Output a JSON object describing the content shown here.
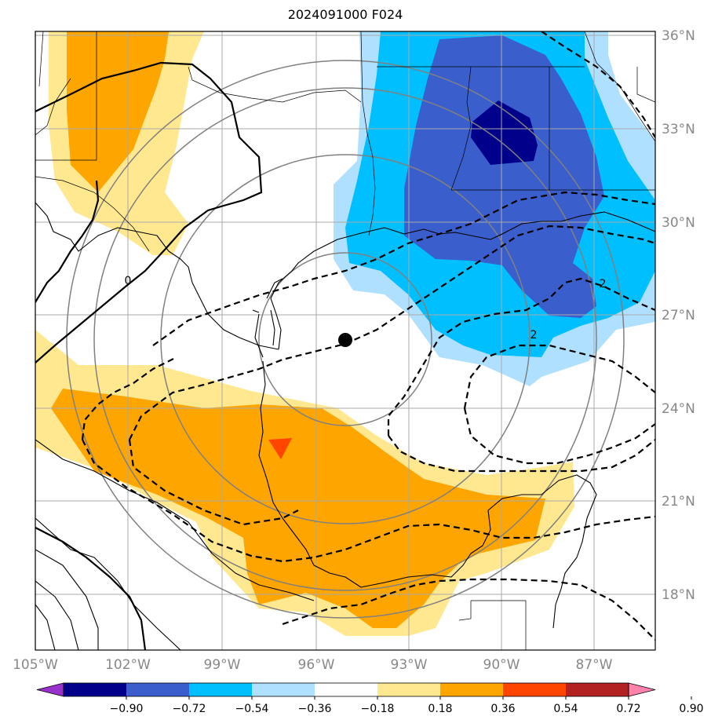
{
  "title": "2024091000 F024",
  "lat_labels": [
    "36°N",
    "33°N",
    "30°N",
    "27°N",
    "24°N",
    "21°N",
    "18°N"
  ],
  "lon_labels": [
    "105°W",
    "102°W",
    "99°W",
    "96°W",
    "93°W",
    "90°W",
    "87°W"
  ],
  "contour_labels": [
    "0",
    "2",
    "2"
  ],
  "colorbar": {
    "ticks": [
      "−0.90",
      "−0.72",
      "−0.54",
      "−0.36",
      "−0.18",
      "0.18",
      "0.36",
      "0.54",
      "0.72",
      "0.90"
    ],
    "colors": [
      "#9932cc",
      "#00008b",
      "#3a5fcd",
      "#00bfff",
      "#b0e0ff",
      "#ffffff",
      "#ffe88f",
      "#ffa500",
      "#ff4500",
      "#b22222",
      "#ff82ab"
    ]
  },
  "colors": {
    "light_yellow": "#ffe88f",
    "orange": "#ffa500",
    "red_orange": "#ff4500",
    "light_blue": "#b0e0ff",
    "deep_sky_blue": "#00bfff",
    "royal_blue": "#3a5fcd",
    "navy": "#00008b",
    "grid": "#a9a9a9",
    "range_rings": "#808080"
  },
  "marker": "storm-center"
}
